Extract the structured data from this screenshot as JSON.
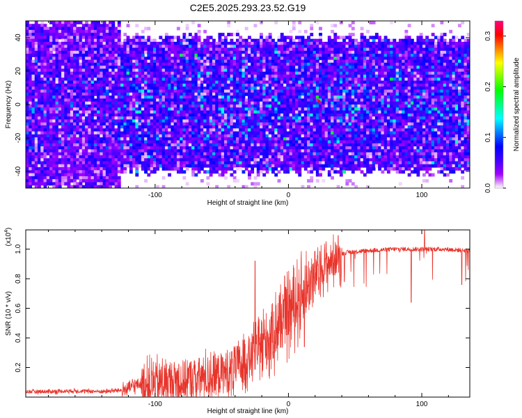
{
  "title": "C2E5.2025.293.23.52.G19",
  "chart_data": [
    {
      "type": "heatmap",
      "xlabel": "Height of straight line (km)",
      "ylabel": "Frequency (Hz)",
      "xlim": [
        -197,
        136
      ],
      "ylim": [
        -50,
        50
      ],
      "xticks": [
        -100,
        0,
        100
      ],
      "yticks": [
        -40,
        -20,
        0,
        20,
        40
      ],
      "colorbar": {
        "label": "Normalized spectral amplitude",
        "range": [
          0.0,
          0.33
        ],
        "ticks": [
          "0.0",
          "0.1",
          "0.2",
          "0.3"
        ],
        "tick_values": [
          0.0,
          0.1,
          0.2,
          0.3
        ],
        "colormap": [
          "#ffffff",
          "#a000ff",
          "#4000ff",
          "#0000ff",
          "#0080ff",
          "#00ffff",
          "#00ff80",
          "#00ff00",
          "#80ff00",
          "#ffff00",
          "#ff8000",
          "#ff0000",
          "#ff0080"
        ]
      },
      "bands": [
        {
          "x": [
            -197,
            -125
          ],
          "freq_half_width": 50,
          "density": "high"
        },
        {
          "x": [
            -125,
            -100
          ],
          "freq_half_width": 40,
          "density": "high"
        },
        {
          "x": [
            -100,
            136
          ],
          "freq_half_width": 40,
          "density": "high"
        }
      ],
      "peak_amplitude": 0.3
    },
    {
      "type": "line",
      "xlabel": "Height of straight line (km)",
      "ylabel": "SNR (10 * v/v)",
      "scale_note": "(x10",
      "scale_exp": "4",
      "xlim": [
        -197,
        136
      ],
      "ylim": [
        0.0,
        1.13
      ],
      "xticks": [
        -100,
        0,
        100
      ],
      "yticks": [
        0.2,
        0.4,
        0.6,
        0.8,
        1.0
      ],
      "line_color": "#e8352c",
      "series": [
        {
          "name": "SNR",
          "x": [
            -197,
            -180,
            -160,
            -140,
            -125,
            -115,
            -100,
            -80,
            -60,
            -45,
            -35,
            -25,
            -15,
            -5,
            5,
            15,
            25,
            35,
            45,
            60,
            80,
            100,
            115,
            136
          ],
          "y": [
            0.04,
            0.04,
            0.045,
            0.04,
            0.05,
            0.09,
            0.12,
            0.14,
            0.17,
            0.2,
            0.26,
            0.34,
            0.44,
            0.56,
            0.68,
            0.8,
            0.9,
            0.96,
            0.98,
            0.99,
            1.0,
            1.0,
            1.0,
            0.99
          ]
        }
      ],
      "spikes": [
        {
          "x": -25,
          "y": 0.92
        },
        {
          "x": 12,
          "y": 0.34
        },
        {
          "x": 42,
          "y": 0.78
        },
        {
          "x": 92,
          "y": 0.64
        },
        {
          "x": 102,
          "y": 1.13
        },
        {
          "x": 130,
          "y": 0.76
        }
      ]
    }
  ]
}
